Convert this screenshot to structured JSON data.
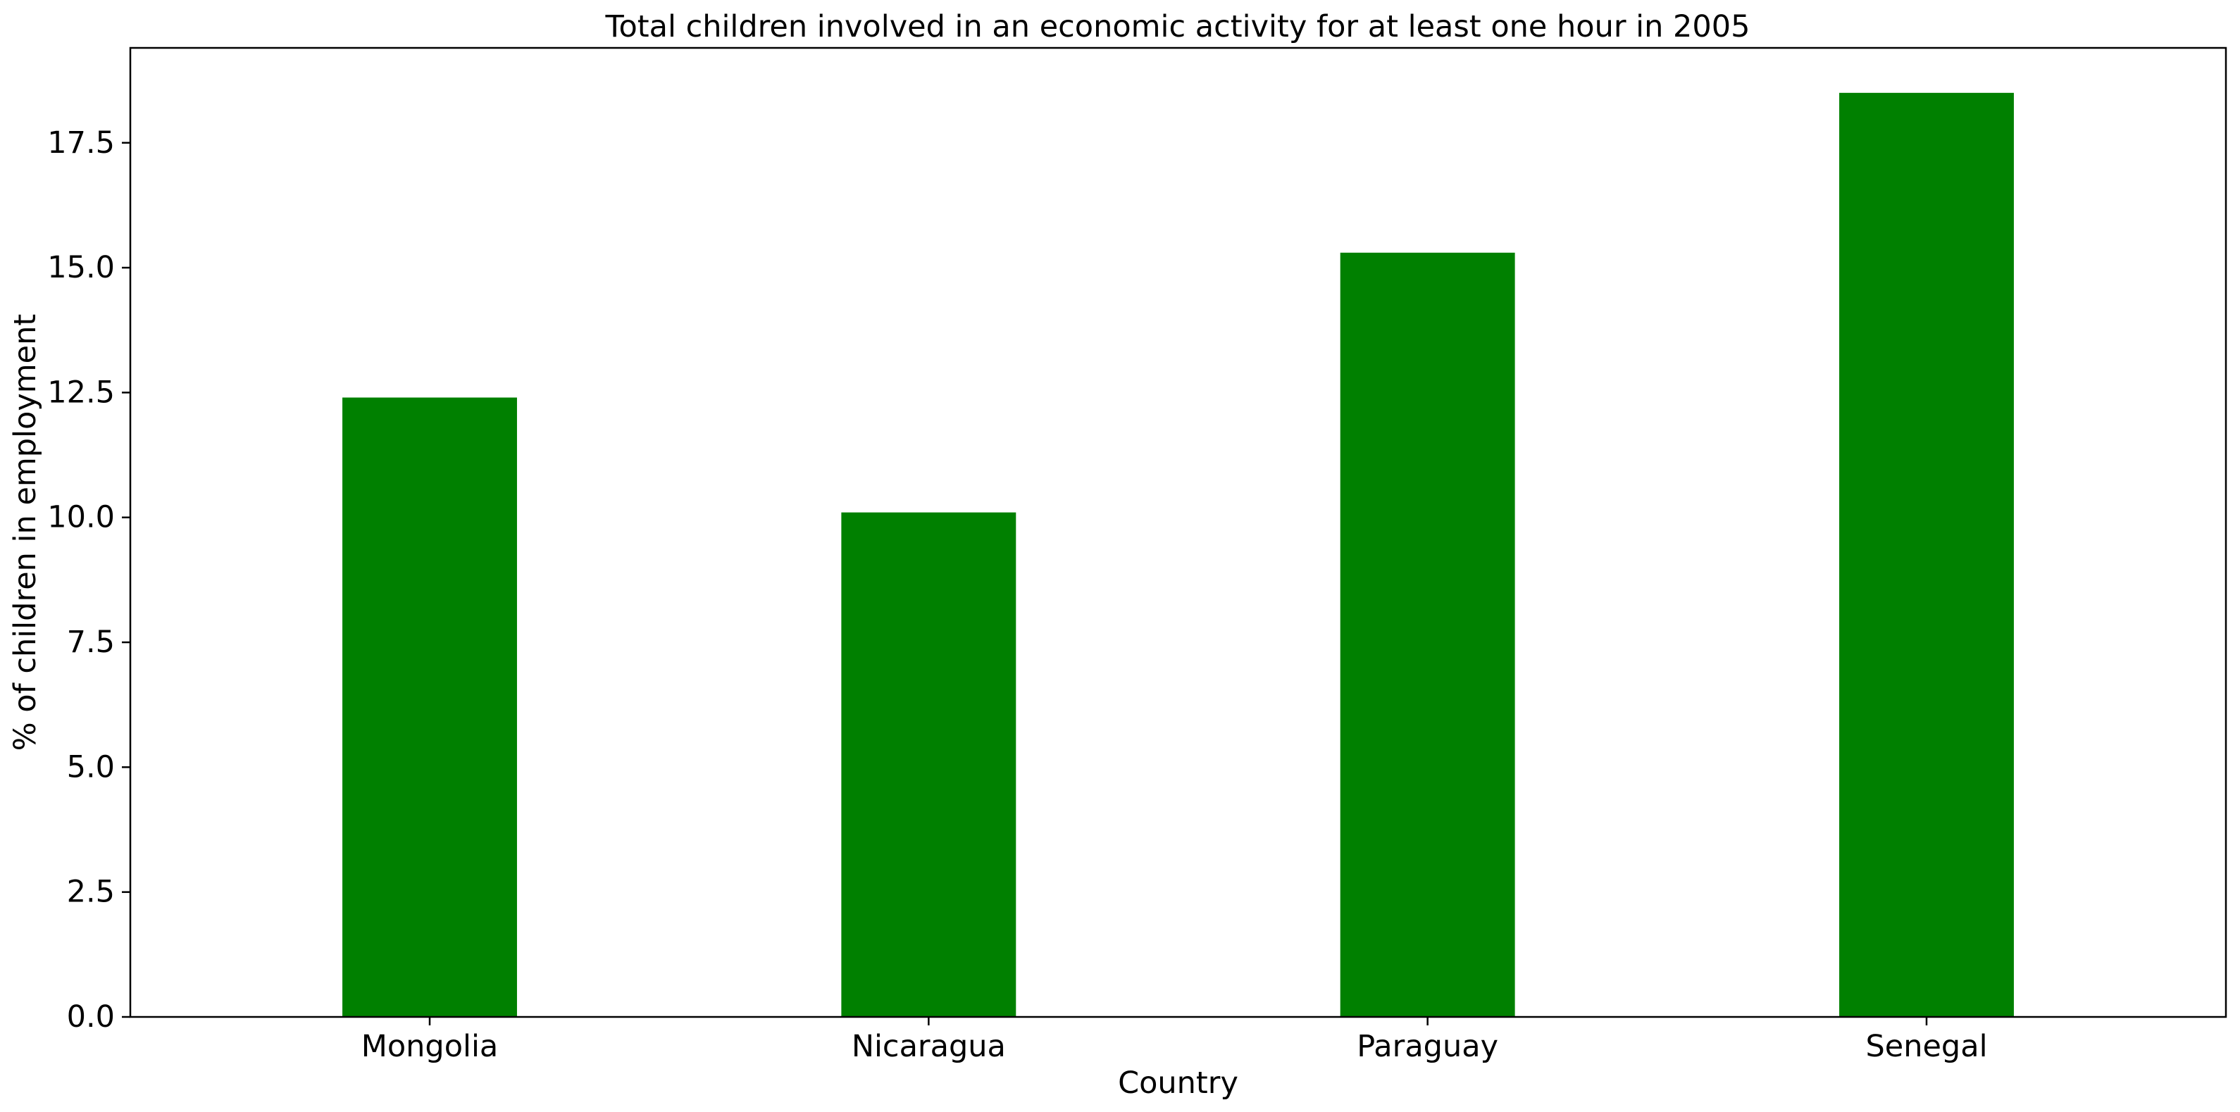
{
  "chart_data": {
    "type": "bar",
    "title": "Total children involved in an economic activity for at least one hour in 2005",
    "xlabel": "Country",
    "ylabel": "% of children in employment",
    "categories": [
      "Mongolia",
      "Nicaragua",
      "Paraguay",
      "Senegal"
    ],
    "values": [
      12.4,
      10.1,
      15.3,
      18.5
    ],
    "ylim": [
      0,
      19.4
    ],
    "yticks": [
      0.0,
      2.5,
      5.0,
      7.5,
      10.0,
      12.5,
      15.0,
      17.5
    ],
    "ytick_labels": [
      "0.0",
      "2.5",
      "5.0",
      "7.5",
      "10.0",
      "12.5",
      "15.0",
      "17.5"
    ],
    "bar_color": "#008000",
    "grid": false,
    "legend": "none"
  }
}
